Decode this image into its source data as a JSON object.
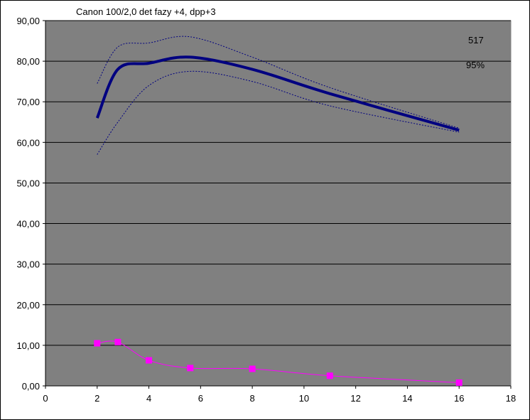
{
  "chart_data": {
    "type": "line",
    "title": "Canon 100/2,0  det fazy +4, dpp+3",
    "xlabel": "",
    "ylabel": "",
    "xlim": [
      0,
      18
    ],
    "ylim": [
      0,
      90
    ],
    "x_ticks": [
      "0",
      "2",
      "4",
      "6",
      "8",
      "10",
      "12",
      "14",
      "16",
      "18"
    ],
    "y_ticks": [
      "0,00",
      "10,00",
      "20,00",
      "30,00",
      "40,00",
      "50,00",
      "60,00",
      "70,00",
      "80,00",
      "90,00"
    ],
    "grid": "horizontal",
    "legend": "none",
    "plot_background": "#808080",
    "annotations": [
      "517",
      "95%"
    ],
    "series": [
      {
        "role": "upper",
        "color": "#000080",
        "style": "dashed-thin",
        "x": [
          2.0,
          2.8,
          4.0,
          5.6,
          8.0,
          11.0,
          16.0
        ],
        "y": [
          74.5,
          83.5,
          84.5,
          86.0,
          81.0,
          73.5,
          63.5
        ]
      },
      {
        "role": "main",
        "color": "#000080",
        "style": "solid-thick",
        "x": [
          2.0,
          2.8,
          4.0,
          5.6,
          8.0,
          11.0,
          16.0
        ],
        "y": [
          66.0,
          78.0,
          79.5,
          81.0,
          78.0,
          72.0,
          63.0
        ]
      },
      {
        "role": "lower",
        "color": "#000080",
        "style": "dashed-thin",
        "x": [
          2.0,
          2.8,
          4.0,
          5.6,
          8.0,
          11.0,
          16.0
        ],
        "y": [
          57.0,
          65.0,
          74.0,
          77.5,
          75.0,
          69.0,
          62.5
        ]
      },
      {
        "role": "deviation",
        "color": "#ff00ff",
        "style": "thin-square-markers",
        "x": [
          2.0,
          2.8,
          4.0,
          5.6,
          8.0,
          11.0,
          16.0
        ],
        "y": [
          10.5,
          10.8,
          6.3,
          4.4,
          4.2,
          2.5,
          0.8
        ]
      }
    ]
  }
}
